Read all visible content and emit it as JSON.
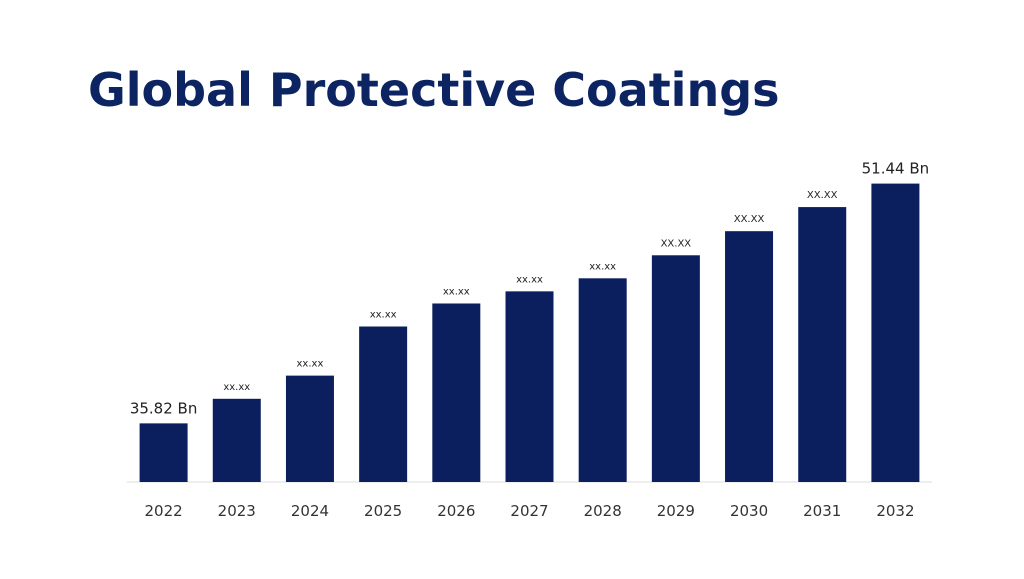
{
  "chart_data": {
    "type": "bar",
    "title": "Global Protective Coatings",
    "categories": [
      "2022",
      "2023",
      "2024",
      "2025",
      "2026",
      "2027",
      "2028",
      "2029",
      "2030",
      "2031",
      "2032"
    ],
    "values": [
      35.82,
      37.42,
      38.93,
      42.13,
      43.63,
      44.42,
      45.27,
      46.77,
      48.34,
      49.91,
      51.44
    ],
    "value_labels": [
      "35.82 Bn",
      "xx.xx",
      "xx.xx",
      "xx.xx",
      "xx.xx",
      "xx.xx",
      "xx.xx",
      "XX.XX",
      "XX.XX",
      "XX.XX",
      "51.44 Bn"
    ],
    "color": "#0b1f5e",
    "ylim": [
      32,
      52
    ]
  }
}
